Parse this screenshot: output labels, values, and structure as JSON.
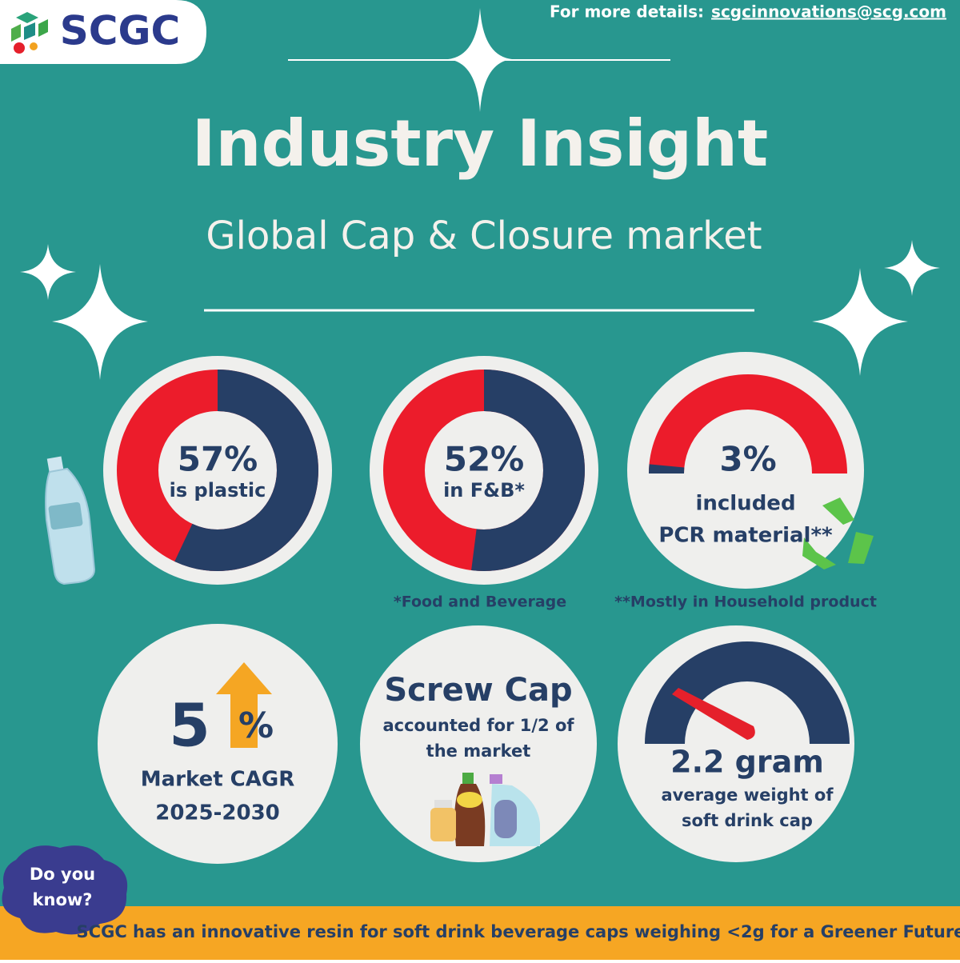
{
  "header": {
    "brand": "SCGC",
    "contact_prefix": "For more details:",
    "contact_email": "scgcinnovations@scg.com"
  },
  "title": "Industry Insight",
  "subtitle": "Global Cap & Closure market",
  "stats": [
    {
      "value": 57,
      "value_label": "57%",
      "caption_lines": [
        "is plastic"
      ]
    },
    {
      "value": 52,
      "value_label": "52%",
      "caption_lines": [
        "in F&B*"
      ]
    },
    {
      "value": 3,
      "value_label": "3%",
      "caption_lines": [
        "included",
        "PCR material**"
      ]
    }
  ],
  "footnotes": [
    "*Food and Beverage",
    "**Mostly in Household product"
  ],
  "cagr": {
    "number": "5",
    "unit": "%",
    "caption_lines": [
      "Market CAGR",
      "2025-2030"
    ]
  },
  "screw_cap": {
    "heading": "Screw Cap",
    "caption_lines": [
      "accounted for 1/2 of",
      "the market"
    ]
  },
  "weight": {
    "value_label": "2.2 gram",
    "caption_lines": [
      "average weight of",
      "soft drink cap"
    ]
  },
  "did_you_know": {
    "badge_lines": [
      "Do you",
      "know?"
    ],
    "text": "SCGC has an innovative resin for soft drink beverage caps weighing <2g for a Greener Future"
  }
}
